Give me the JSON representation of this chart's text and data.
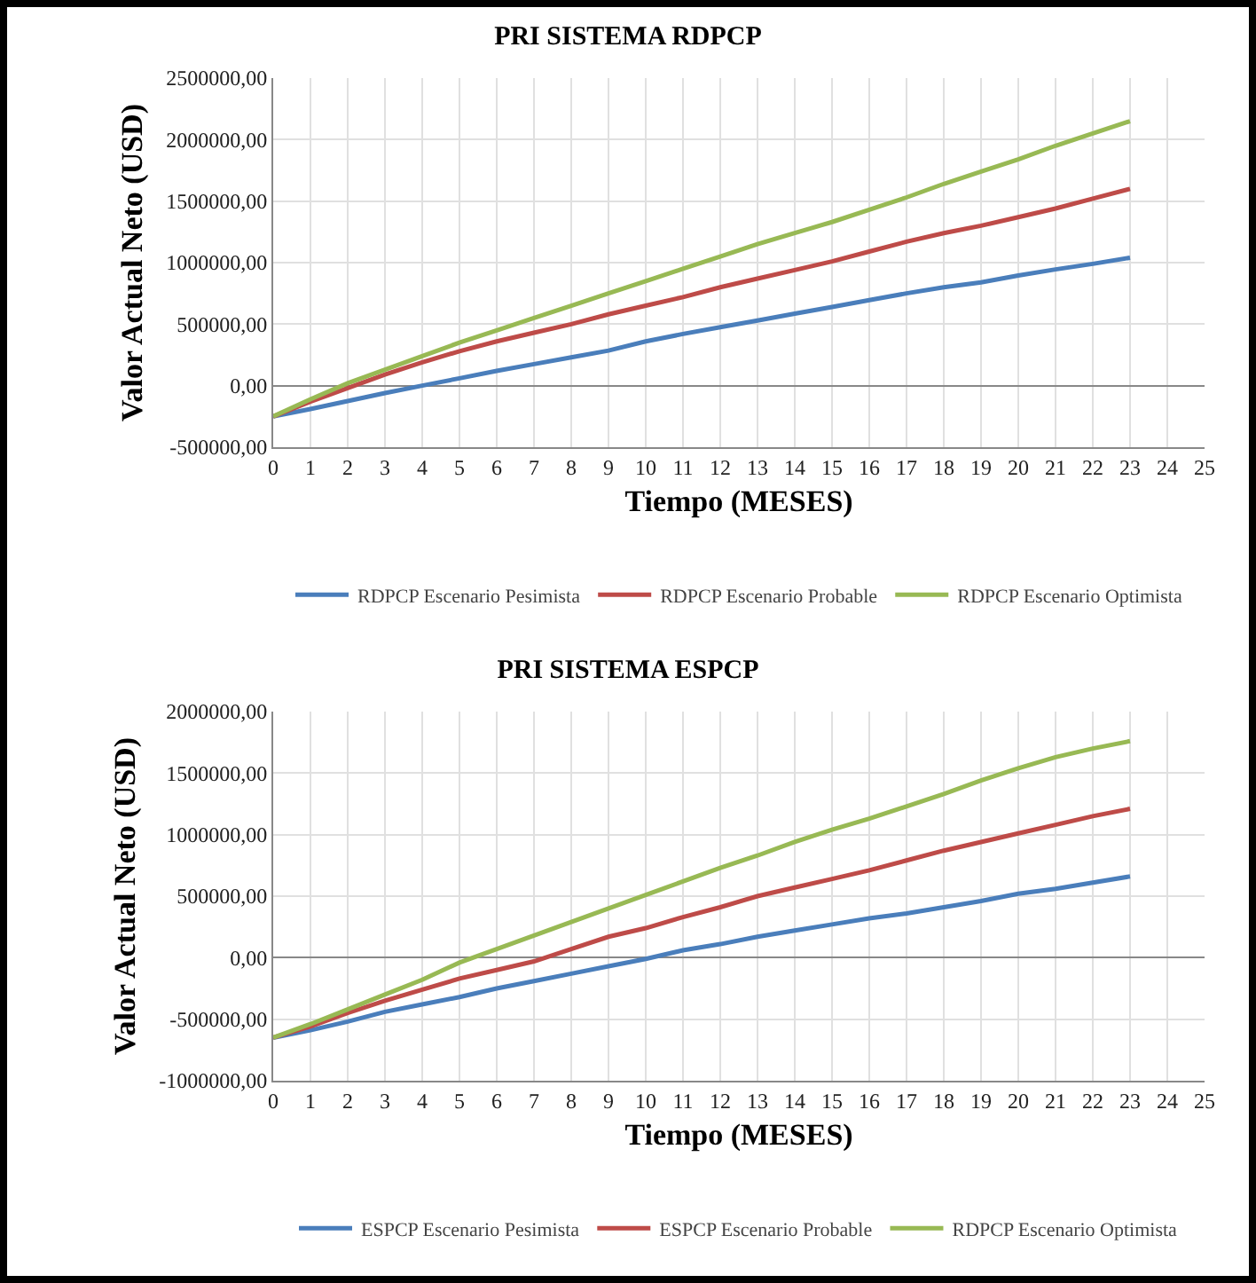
{
  "chart_data": [
    {
      "type": "line",
      "title": "PRI SISTEMA RDPCP",
      "xlabel": "Tiempo (MESES)",
      "ylabel": "Valor Actual Neto (USD)",
      "x": [
        0,
        1,
        2,
        3,
        4,
        5,
        6,
        7,
        8,
        9,
        10,
        11,
        12,
        13,
        14,
        15,
        16,
        17,
        18,
        19,
        20,
        21,
        22,
        23
      ],
      "series": [
        {
          "name": "RDPCP Escenario Pesimista",
          "color": "#4a7ebb",
          "values": [
            -250000,
            -190000,
            -125000,
            -60000,
            0,
            60000,
            120000,
            175000,
            230000,
            285000,
            360000,
            420000,
            475000,
            530000,
            585000,
            640000,
            695000,
            750000,
            800000,
            840000,
            895000,
            945000,
            990000,
            1040000
          ]
        },
        {
          "name": "RDPCP Escenario Probable",
          "color": "#be4b48",
          "values": [
            -250000,
            -130000,
            -20000,
            90000,
            190000,
            280000,
            360000,
            430000,
            500000,
            580000,
            650000,
            720000,
            800000,
            870000,
            940000,
            1010000,
            1090000,
            1170000,
            1240000,
            1300000,
            1370000,
            1440000,
            1520000,
            1600000
          ]
        },
        {
          "name": "RDPCP Escenario Optimista",
          "color": "#98b954",
          "values": [
            -250000,
            -110000,
            20000,
            130000,
            240000,
            350000,
            450000,
            550000,
            650000,
            750000,
            850000,
            950000,
            1050000,
            1150000,
            1240000,
            1330000,
            1430000,
            1530000,
            1640000,
            1740000,
            1840000,
            1950000,
            2050000,
            2150000
          ]
        }
      ],
      "xlim": [
        0,
        25
      ],
      "xticks": [
        0,
        1,
        2,
        3,
        4,
        5,
        6,
        7,
        8,
        9,
        10,
        11,
        12,
        13,
        14,
        15,
        16,
        17,
        18,
        19,
        20,
        21,
        22,
        23,
        24,
        25
      ],
      "ylim": [
        -500000,
        2500000
      ],
      "yticks": [
        {
          "value": -500000,
          "label": "-500000,00"
        },
        {
          "value": 0,
          "label": "0,00"
        },
        {
          "value": 500000,
          "label": "500000,00"
        },
        {
          "value": 1000000,
          "label": "1000000,00"
        },
        {
          "value": 1500000,
          "label": "1500000,00"
        },
        {
          "value": 2000000,
          "label": "2000000,00"
        },
        {
          "value": 2500000,
          "label": "2500000,00"
        }
      ],
      "grid": true,
      "legend": "bottom",
      "marker": "none",
      "line_style": "solid"
    },
    {
      "type": "line",
      "title": "PRI SISTEMA ESPCP",
      "xlabel": "Tiempo (MESES)",
      "ylabel": "Valor Actual Neto (USD)",
      "x": [
        0,
        1,
        2,
        3,
        4,
        5,
        6,
        7,
        8,
        9,
        10,
        11,
        12,
        13,
        14,
        15,
        16,
        17,
        18,
        19,
        20,
        21,
        22,
        23
      ],
      "series": [
        {
          "name": "ESPCP Escenario Pesimista",
          "color": "#4a7ebb",
          "values": [
            -650000,
            -590000,
            -520000,
            -440000,
            -380000,
            -320000,
            -250000,
            -190000,
            -130000,
            -70000,
            -10000,
            60000,
            110000,
            170000,
            220000,
            270000,
            320000,
            360000,
            410000,
            460000,
            520000,
            560000,
            610000,
            660000
          ]
        },
        {
          "name": "ESPCP Escenario Probable",
          "color": "#be4b48",
          "values": [
            -650000,
            -560000,
            -450000,
            -350000,
            -260000,
            -170000,
            -100000,
            -30000,
            70000,
            170000,
            240000,
            330000,
            410000,
            500000,
            570000,
            640000,
            710000,
            790000,
            870000,
            940000,
            1010000,
            1080000,
            1150000,
            1210000
          ]
        },
        {
          "name": "RDPCP Escenario Optimista",
          "color": "#98b954",
          "values": [
            -650000,
            -540000,
            -420000,
            -300000,
            -180000,
            -40000,
            70000,
            180000,
            290000,
            400000,
            510000,
            620000,
            730000,
            830000,
            940000,
            1040000,
            1130000,
            1230000,
            1330000,
            1440000,
            1540000,
            1630000,
            1700000,
            1760000
          ]
        }
      ],
      "xlim": [
        0,
        25
      ],
      "xticks": [
        0,
        1,
        2,
        3,
        4,
        5,
        6,
        7,
        8,
        9,
        10,
        11,
        12,
        13,
        14,
        15,
        16,
        17,
        18,
        19,
        20,
        21,
        22,
        23,
        24,
        25
      ],
      "ylim": [
        -1000000,
        2000000
      ],
      "yticks": [
        {
          "value": -1000000,
          "label": "-1000000,00"
        },
        {
          "value": -500000,
          "label": "-500000,00"
        },
        {
          "value": 0,
          "label": "0,00"
        },
        {
          "value": 500000,
          "label": "500000,00"
        },
        {
          "value": 1000000,
          "label": "1000000,00"
        },
        {
          "value": 1500000,
          "label": "1500000,00"
        },
        {
          "value": 2000000,
          "label": "2000000,00"
        }
      ],
      "grid": true,
      "legend": "bottom",
      "marker": "none",
      "line_style": "solid"
    }
  ]
}
